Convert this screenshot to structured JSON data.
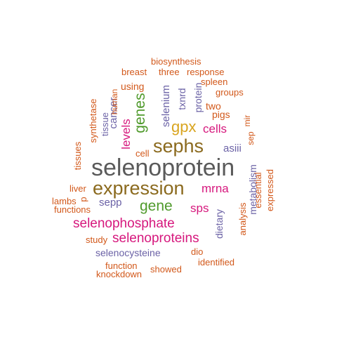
{
  "colors": {
    "gray": "#5a5a5a",
    "brown": "#8b6a1e",
    "pink": "#d6187d",
    "purple": "#6b62a6",
    "green": "#4f9a2b",
    "orange": "#d2581a",
    "gold": "#d9a520"
  },
  "words": {
    "selenoprotein": "selenoprotein",
    "expression": "expression",
    "sephs": "sephs",
    "selenophosphate": "selenophosphate",
    "selenoproteins": "selenoproteins",
    "genes": "genes",
    "gene": "gene",
    "gpx": "gpx",
    "mrna": "mrna",
    "sps": "sps",
    "cells": "cells",
    "levels": "levels",
    "cancer": "cancer",
    "selenocysteine": "selenocysteine",
    "metabolism": "metabolism",
    "selenium": "selenium",
    "sepp": "sepp",
    "asiii": "asiii",
    "dietary": "dietary",
    "txnrd": "txnrd",
    "protein": "protein",
    "two": "two",
    "pigs": "pigs",
    "tissue": "tissue",
    "tissues": "tissues",
    "human": "human",
    "synthetase": "synthetase",
    "p": "p",
    "cell": "cell",
    "using": "using",
    "breast": "breast",
    "three": "three",
    "response": "response",
    "biosynthesis": "biosynthesis",
    "spleen": "spleen",
    "groups": "groups",
    "mir": "mir",
    "sep": "sep",
    "analysis": "analysis",
    "essential": "essential",
    "expressed": "expressed",
    "liver": "liver",
    "lambs": "lambs",
    "functions": "functions",
    "study": "study",
    "function": "function",
    "knockdown": "knockdown",
    "showed": "showed",
    "dio": "dio",
    "identified": "identified"
  }
}
